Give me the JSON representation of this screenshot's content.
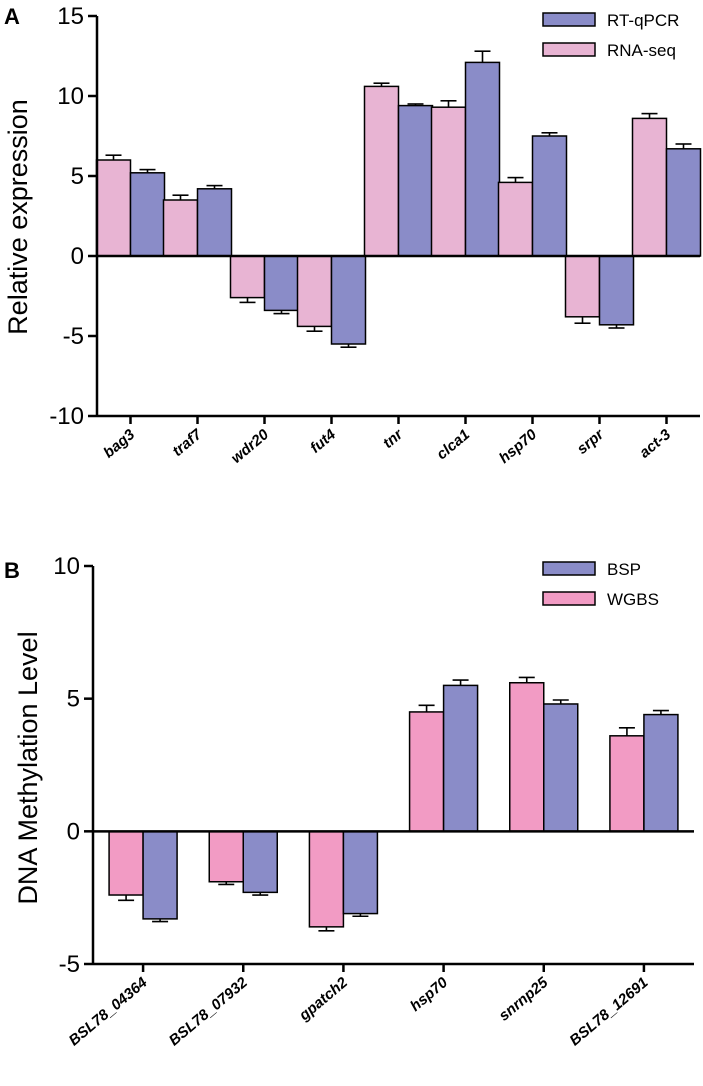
{
  "chart_data": [
    {
      "type": "bar",
      "panel_label": "A",
      "title": "",
      "xlabel": "",
      "ylabel": "Relative expression",
      "ylim": [
        -10,
        15
      ],
      "yticks": [
        -10,
        -5,
        0,
        5,
        10,
        15
      ],
      "categories": [
        "bag3",
        "traf7",
        "wdr20",
        "fut4",
        "tnr",
        "clca1",
        "hsp70",
        "srpr",
        "act-3"
      ],
      "series": [
        {
          "name": "RNA-seq",
          "color": "#E8B4D3",
          "values": [
            6.0,
            3.5,
            -2.6,
            -4.4,
            10.6,
            9.3,
            4.6,
            -3.8,
            8.6
          ],
          "errors": [
            0.3,
            0.3,
            0.3,
            0.3,
            0.2,
            0.4,
            0.3,
            0.4,
            0.3
          ]
        },
        {
          "name": "RT-qPCR",
          "color": "#8A8CC8",
          "values": [
            5.2,
            4.2,
            -3.4,
            -5.5,
            9.4,
            12.1,
            7.5,
            -4.3,
            6.7
          ],
          "errors": [
            0.2,
            0.2,
            0.2,
            0.2,
            0.1,
            0.7,
            0.2,
            0.2,
            0.3
          ]
        }
      ],
      "legend": [
        "RT-qPCR",
        "RNA-seq"
      ],
      "legend_position": "top-right"
    },
    {
      "type": "bar",
      "panel_label": "B",
      "title": "",
      "xlabel": "",
      "ylabel": "DNA Methylation Level",
      "ylim": [
        -5,
        10
      ],
      "yticks": [
        -5,
        0,
        5,
        10
      ],
      "categories": [
        "BSL78_04364",
        "BSL78_07932",
        "gpatch2",
        "hsp70",
        "snrnp25",
        "BSL78_12691"
      ],
      "series": [
        {
          "name": "WGBS",
          "color": "#F29BC4",
          "values": [
            -2.4,
            -1.9,
            -3.6,
            4.5,
            5.6,
            3.6
          ],
          "errors": [
            0.2,
            0.1,
            0.15,
            0.25,
            0.2,
            0.3
          ]
        },
        {
          "name": "BSP",
          "color": "#8A8CC8",
          "values": [
            -3.3,
            -2.3,
            -3.1,
            5.5,
            4.8,
            4.4
          ],
          "errors": [
            0.1,
            0.1,
            0.1,
            0.2,
            0.15,
            0.15
          ]
        }
      ],
      "legend": [
        "BSP",
        "WGBS"
      ],
      "legend_position": "top-right"
    }
  ]
}
